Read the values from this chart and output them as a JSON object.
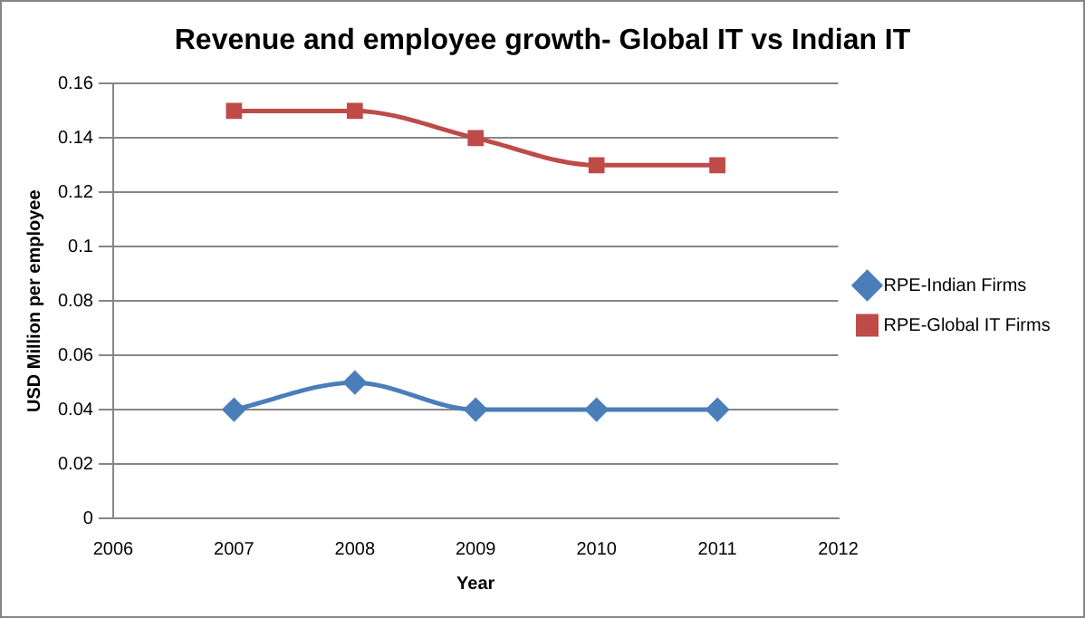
{
  "chart_data": {
    "type": "line",
    "title": "Revenue and employee growth- Global IT vs Indian IT",
    "xlabel": "Year",
    "ylabel": "USD Million per employee",
    "x": [
      2007,
      2008,
      2009,
      2010,
      2011
    ],
    "series": [
      {
        "name": "RPE-Indian Firms",
        "color": "#4a7ebb",
        "marker": "diamond",
        "values": [
          0.04,
          0.05,
          0.04,
          0.04,
          0.04
        ]
      },
      {
        "name": "RPE-Global IT Firms",
        "color": "#be4b48",
        "marker": "square",
        "values": [
          0.15,
          0.15,
          0.14,
          0.13,
          0.13
        ]
      }
    ],
    "xlim": [
      2006,
      2012
    ],
    "xticks": [
      2006,
      2007,
      2008,
      2009,
      2010,
      2011,
      2012
    ],
    "ylim": [
      0,
      0.16
    ],
    "yticks": [
      0,
      0.02,
      0.04,
      0.06,
      0.08,
      0.1,
      0.12,
      0.14,
      0.16
    ],
    "grid": "y",
    "legend": "right"
  }
}
